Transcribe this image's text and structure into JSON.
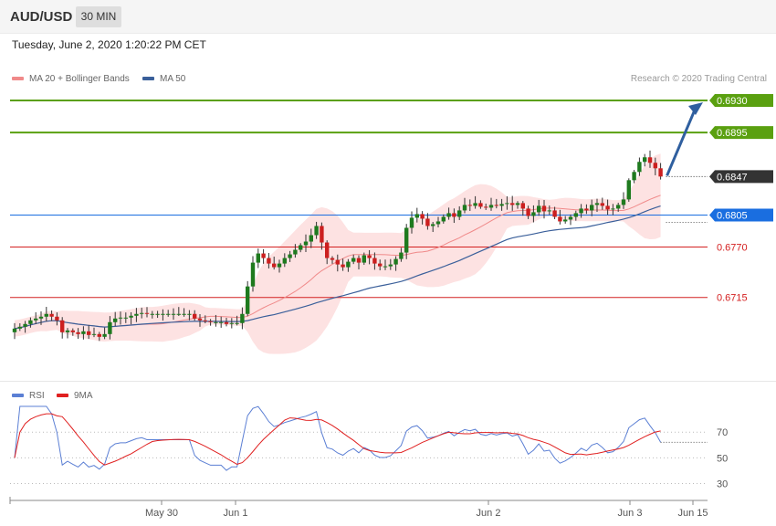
{
  "header": {
    "symbol": "AUD/USD",
    "timeframe": "30 MIN"
  },
  "datetime": "Tuesday, June 2, 2020 1:20:22 PM CET",
  "legend": {
    "ma20_label": "MA 20 + Bollinger Bands",
    "ma50_label": "MA 50",
    "ma20_color": "#f08a8a",
    "ma50_color": "#3a5f9a",
    "credit": "Research © 2020 Trading Central"
  },
  "rsi_legend": {
    "rsi_label": "RSI",
    "ma_label": "9MA",
    "rsi_color": "#5b7fd4",
    "ma_color": "#e02020"
  },
  "chart_data": [
    {
      "type": "candlestick",
      "timeframe": "30 MIN",
      "x_ticks": [
        "May 30",
        "Jun 1",
        "Jun 2",
        "Jun 3",
        "Jun 15"
      ],
      "levels": [
        {
          "value": "0.6930",
          "kind": "resistance",
          "color": "#5aa010"
        },
        {
          "value": "0.6895",
          "kind": "resistance",
          "color": "#5aa010"
        },
        {
          "value": "0.6847",
          "kind": "last",
          "color": "#333333"
        },
        {
          "value": "0.6805",
          "kind": "pivot",
          "color": "#1a6ee0"
        },
        {
          "value": "0.6770",
          "kind": "support",
          "color": "#d42020"
        },
        {
          "value": "0.6715",
          "kind": "support",
          "color": "#d42020"
        }
      ],
      "ylim": [
        0.6621,
        0.695
      ],
      "close": [
        0.6681,
        0.6683,
        0.6686,
        0.669,
        0.6692,
        0.6694,
        0.6697,
        0.6694,
        0.669,
        0.6677,
        0.6679,
        0.6677,
        0.6675,
        0.6678,
        0.6674,
        0.6675,
        0.6672,
        0.6675,
        0.6688,
        0.6692,
        0.6693,
        0.6693,
        0.6695,
        0.6697,
        0.6698,
        0.6697,
        0.6697,
        0.6697,
        0.6697,
        0.6697,
        0.6697,
        0.6697,
        0.6697,
        0.6697,
        0.6692,
        0.669,
        0.6689,
        0.6688,
        0.6688,
        0.6688,
        0.6686,
        0.6687,
        0.6687,
        0.6697,
        0.6727,
        0.6753,
        0.6763,
        0.6758,
        0.6752,
        0.6748,
        0.6752,
        0.6758,
        0.6762,
        0.6767,
        0.6772,
        0.6776,
        0.6783,
        0.6793,
        0.6775,
        0.6758,
        0.6756,
        0.6751,
        0.6748,
        0.6754,
        0.6758,
        0.6753,
        0.6761,
        0.6758,
        0.6752,
        0.6749,
        0.6749,
        0.6751,
        0.6757,
        0.6764,
        0.6791,
        0.6802,
        0.6806,
        0.6801,
        0.6793,
        0.6795,
        0.6798,
        0.6803,
        0.6807,
        0.6803,
        0.681,
        0.6816,
        0.6815,
        0.6818,
        0.6814,
        0.6813,
        0.6816,
        0.6815,
        0.6817,
        0.6818,
        0.6816,
        0.6818,
        0.6812,
        0.6804,
        0.6808,
        0.6815,
        0.6809,
        0.681,
        0.6803,
        0.6798,
        0.68,
        0.6803,
        0.6807,
        0.6812,
        0.681,
        0.6816,
        0.6818,
        0.6815,
        0.6811,
        0.6812,
        0.6816,
        0.6822,
        0.6843,
        0.6852,
        0.6863,
        0.6868,
        0.6862,
        0.6856,
        0.6847
      ]
    },
    {
      "type": "line",
      "name": "RSI",
      "y_ticks": [
        70,
        50,
        30
      ],
      "ylim": [
        19,
        95
      ]
    }
  ]
}
